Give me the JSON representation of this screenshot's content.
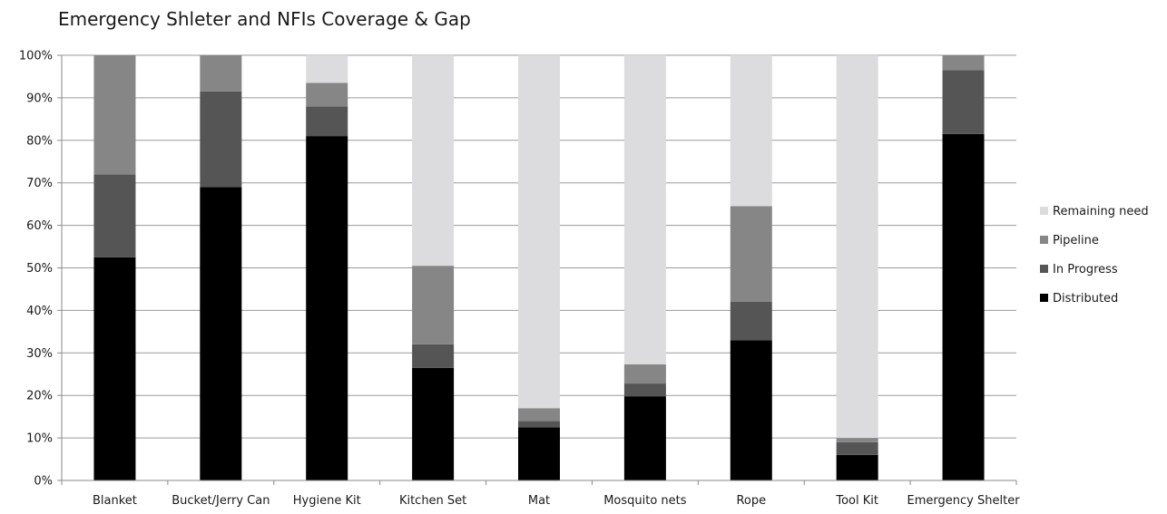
{
  "chart_data": {
    "type": "bar",
    "stacked": true,
    "percent_stacked": true,
    "title": "Emergency Shleter and NFIs Coverage & Gap",
    "xlabel": "",
    "ylabel": "",
    "ylim": [
      0,
      100
    ],
    "y_ticks": [
      "0%",
      "10%",
      "20%",
      "30%",
      "40%",
      "50%",
      "60%",
      "70%",
      "80%",
      "90%",
      "100%"
    ],
    "grid": true,
    "legend_position": "right",
    "categories": [
      "Blanket",
      "Bucket/Jerry Can",
      "Hygiene Kit",
      "Kitchen Set",
      "Mat",
      "Mosquito nets",
      "Rope",
      "Tool Kit",
      "Emergency Shelter"
    ],
    "series": [
      {
        "name": "Distributed",
        "color": "#000000",
        "values": [
          52.5,
          69,
          81,
          26.5,
          12.5,
          19.8,
          33,
          6,
          81.5
        ]
      },
      {
        "name": "In Progress",
        "color": "#555555",
        "values": [
          19.5,
          22.5,
          7,
          5.5,
          1.5,
          3,
          9,
          3,
          15
        ]
      },
      {
        "name": "Pipeline",
        "color": "#868686",
        "values": [
          28,
          8.5,
          5.5,
          18.5,
          3,
          4.5,
          22.5,
          1,
          3.5
        ]
      },
      {
        "name": "Remaining need",
        "color": "#dcdbde",
        "values": [
          0,
          0,
          6.5,
          49.5,
          83,
          72.7,
          35.5,
          90,
          0
        ]
      }
    ]
  }
}
